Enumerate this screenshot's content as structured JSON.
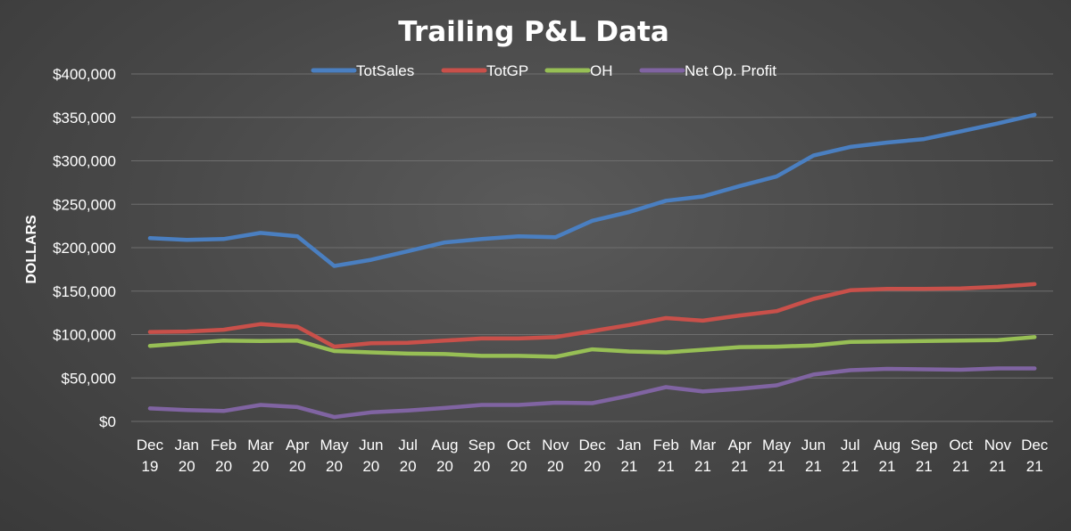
{
  "chart_data": {
    "type": "line",
    "title": "Trailing P&L Data",
    "xlabel": "",
    "ylabel": "DOLLARS",
    "ylim": [
      0,
      400000
    ],
    "yticks": [
      0,
      50000,
      100000,
      150000,
      200000,
      250000,
      300000,
      350000,
      400000
    ],
    "ytick_labels": [
      "$0",
      "$50,000",
      "$100,000",
      "$150,000",
      "$200,000",
      "$250,000",
      "$300,000",
      "$350,000",
      "$400,000"
    ],
    "grid": true,
    "legend_position": "top-center",
    "categories": [
      [
        "Dec",
        "19"
      ],
      [
        "Jan",
        "20"
      ],
      [
        "Feb",
        "20"
      ],
      [
        "Mar",
        "20"
      ],
      [
        "Apr",
        "20"
      ],
      [
        "May",
        "20"
      ],
      [
        "Jun",
        "20"
      ],
      [
        "Jul",
        "20"
      ],
      [
        "Aug",
        "20"
      ],
      [
        "Sep",
        "20"
      ],
      [
        "Oct",
        "20"
      ],
      [
        "Nov",
        "20"
      ],
      [
        "Dec",
        "20"
      ],
      [
        "Jan",
        "21"
      ],
      [
        "Feb",
        "21"
      ],
      [
        "Mar",
        "21"
      ],
      [
        "Apr",
        "21"
      ],
      [
        "May",
        "21"
      ],
      [
        "Jun",
        "21"
      ],
      [
        "Jul",
        "21"
      ],
      [
        "Aug",
        "21"
      ],
      [
        "Sep",
        "21"
      ],
      [
        "Oct",
        "21"
      ],
      [
        "Nov",
        "21"
      ],
      [
        "Dec",
        "21"
      ]
    ],
    "series": [
      {
        "name": "TotSales",
        "color": "#4a7fc1",
        "values": [
          211000,
          209000,
          210000,
          217000,
          213000,
          179000,
          186000,
          196000,
          206000,
          210000,
          213000,
          212000,
          231000,
          241000,
          254000,
          259000,
          271000,
          282000,
          306000,
          316000,
          321000,
          325000,
          334000,
          343000,
          353000
        ]
      },
      {
        "name": "TotGP",
        "color": "#c9504a",
        "values": [
          103000,
          103500,
          105500,
          112000,
          109000,
          86000,
          90000,
          90500,
          93000,
          95500,
          95500,
          97000,
          104000,
          111000,
          119000,
          116000,
          122000,
          127000,
          141000,
          151000,
          152500,
          152500,
          153000,
          155000,
          158000
        ]
      },
      {
        "name": "OH",
        "color": "#97bf55",
        "values": [
          87000,
          90000,
          93000,
          92500,
          93000,
          81000,
          79500,
          78000,
          77500,
          75500,
          75500,
          74500,
          83000,
          80500,
          79500,
          82500,
          85500,
          86000,
          87500,
          91500,
          92000,
          92500,
          93000,
          93500,
          97000
        ]
      },
      {
        "name": "Net Op. Profit",
        "color": "#8064a2",
        "values": [
          15000,
          13000,
          12000,
          19000,
          16500,
          5000,
          10500,
          12500,
          15500,
          19000,
          19000,
          21500,
          21000,
          29500,
          39500,
          34500,
          37500,
          41500,
          54000,
          59000,
          60500,
          60000,
          59500,
          61000,
          61000
        ]
      }
    ]
  }
}
